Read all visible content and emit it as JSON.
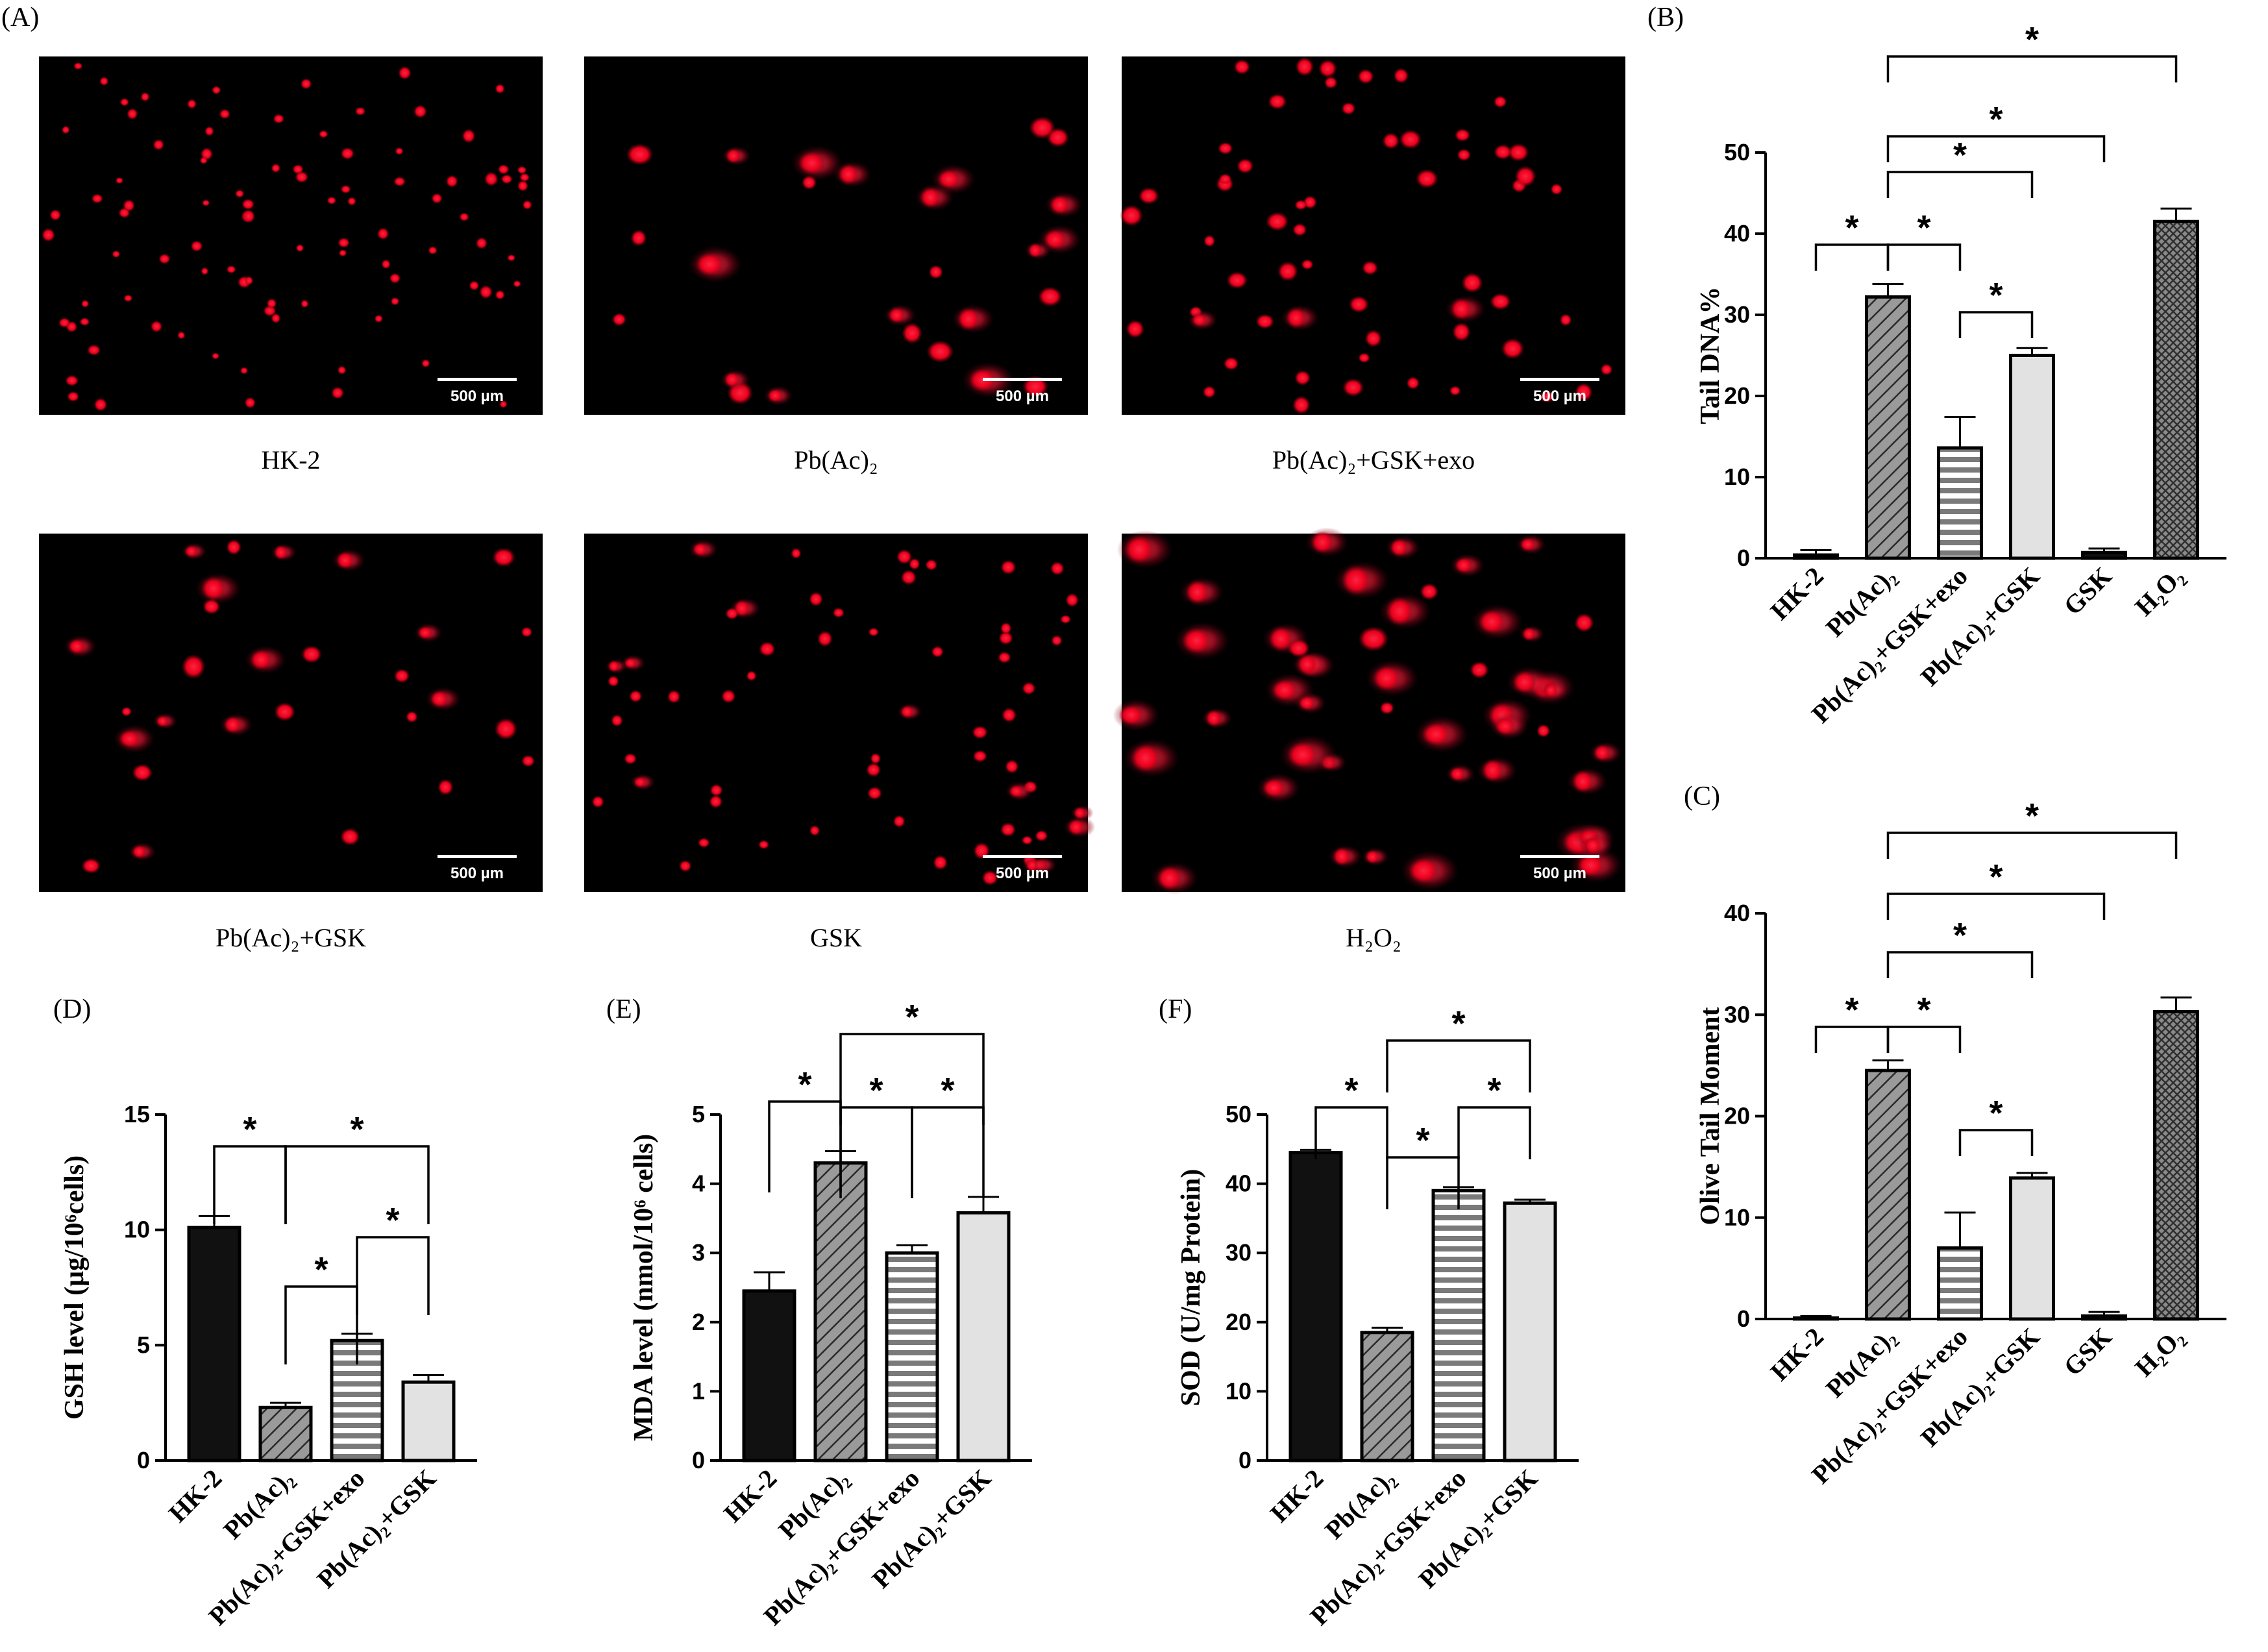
{
  "panel_labels": {
    "A": "(A)",
    "B": "(B)",
    "C": "(C)",
    "D": "(D)",
    "E": "(E)",
    "F": "(F)"
  },
  "colors": {
    "cell_stain": "#e8001c",
    "background": "#000000",
    "black_bar": "#111111",
    "light_bar": "#e2e2e2",
    "gray_bar": "#8f8f8f"
  },
  "micrographs": [
    {
      "caption": "HK-2",
      "scale_bar": "500 µm"
    },
    {
      "caption": "Pb(Ac)₂",
      "scale_bar": "500 µm"
    },
    {
      "caption": "Pb(Ac)₂+GSK+exo",
      "scale_bar": "500 µm"
    },
    {
      "caption": "Pb(Ac)₂+GSK",
      "scale_bar": "500 µm"
    },
    {
      "caption": "GSK",
      "scale_bar": "500 µm"
    },
    {
      "caption": "H₂O₂",
      "scale_bar": "500 µm"
    }
  ],
  "chart_data": [
    {
      "panel": "B",
      "type": "bar",
      "ylabel": "Tail DNA%",
      "ylim": [
        0,
        50
      ],
      "yticks": [
        0,
        10,
        20,
        30,
        40,
        50
      ],
      "categories": [
        "HK-2",
        "Pb(Ac)₂",
        "Pb(Ac)₂+GSK+exo",
        "Pb(Ac)₂+GSK",
        "GSK",
        "H₂O₂"
      ],
      "values": [
        0.4,
        32.2,
        13.6,
        25.0,
        0.7,
        41.5
      ],
      "errors": [
        0.6,
        1.6,
        3.8,
        0.9,
        0.5,
        1.6
      ],
      "patterns": [
        "black",
        "diagonal",
        "horizontal",
        "light",
        "black",
        "crosshatch"
      ],
      "significance": [
        {
          "from": 0,
          "to": 1,
          "label": "*"
        },
        {
          "from": 1,
          "to": 2,
          "label": "*"
        },
        {
          "from": 2,
          "to": 3,
          "label": "*"
        },
        {
          "from": 1,
          "to": 3,
          "label": "*"
        },
        {
          "from": 1,
          "to": 4,
          "label": "*"
        },
        {
          "from": 1,
          "to": 5,
          "label": "*"
        }
      ]
    },
    {
      "panel": "C",
      "type": "bar",
      "ylabel": "Olive Tail Moment",
      "ylim": [
        0,
        40
      ],
      "yticks": [
        0,
        10,
        20,
        30,
        40
      ],
      "categories": [
        "HK-2",
        "Pb(Ac)₂",
        "Pb(Ac)₂+GSK+exo",
        "Pb(Ac)₂+GSK",
        "GSK",
        "H₂O₂"
      ],
      "values": [
        0.1,
        24.5,
        7.0,
        13.9,
        0.3,
        30.3
      ],
      "errors": [
        0.2,
        1.0,
        3.5,
        0.5,
        0.4,
        1.4
      ],
      "patterns": [
        "black",
        "diagonal",
        "horizontal",
        "light",
        "black",
        "crosshatch"
      ],
      "significance": [
        {
          "from": 0,
          "to": 1,
          "label": "*"
        },
        {
          "from": 1,
          "to": 2,
          "label": "*"
        },
        {
          "from": 2,
          "to": 3,
          "label": "*"
        },
        {
          "from": 1,
          "to": 3,
          "label": "*"
        },
        {
          "from": 1,
          "to": 4,
          "label": "*"
        },
        {
          "from": 1,
          "to": 5,
          "label": "*"
        }
      ]
    },
    {
      "panel": "D",
      "type": "bar",
      "ylabel": "GSH level (μg/10⁶cells)",
      "ylim": [
        0,
        15
      ],
      "yticks": [
        0,
        5,
        10,
        15
      ],
      "categories": [
        "HK-2",
        "Pb(Ac)₂",
        "Pb(Ac)₂+GSK+exo",
        "Pb(Ac)₂+GSK"
      ],
      "values": [
        10.1,
        2.3,
        5.2,
        3.4
      ],
      "errors": [
        0.5,
        0.2,
        0.3,
        0.3
      ],
      "patterns": [
        "black",
        "diagonal",
        "horizontal",
        "light"
      ],
      "significance": [
        {
          "from": 0,
          "to": 1,
          "label": "*"
        },
        {
          "from": 1,
          "to": 2,
          "label": "*"
        },
        {
          "from": 2,
          "to": 3,
          "label": "*"
        },
        {
          "from": 1,
          "to": 3,
          "label": "*"
        }
      ]
    },
    {
      "panel": "E",
      "type": "bar",
      "ylabel": "MDA level (nmol/10⁶ cells)",
      "ylim": [
        0,
        5
      ],
      "yticks": [
        0,
        1,
        2,
        3,
        4,
        5
      ],
      "categories": [
        "HK-2",
        "Pb(Ac)₂",
        "Pb(Ac)₂+GSK+exo",
        "Pb(Ac)₂+GSK"
      ],
      "values": [
        2.45,
        4.3,
        3.0,
        3.58
      ],
      "errors": [
        0.27,
        0.17,
        0.11,
        0.23
      ],
      "patterns": [
        "black",
        "diagonal",
        "horizontal",
        "light"
      ],
      "significance": [
        {
          "from": 0,
          "to": 1,
          "label": "*"
        },
        {
          "from": 1,
          "to": 2,
          "label": "*"
        },
        {
          "from": 2,
          "to": 3,
          "label": "*"
        },
        {
          "from": 1,
          "to": 3,
          "label": "*"
        }
      ]
    },
    {
      "panel": "F",
      "type": "bar",
      "ylabel": "SOD (U/mg Protein)",
      "ylim": [
        0,
        50
      ],
      "yticks": [
        0,
        10,
        20,
        30,
        40,
        50
      ],
      "categories": [
        "HK-2",
        "Pb(Ac)₂",
        "Pb(Ac)₂+GSK+exo",
        "Pb(Ac)₂+GSK"
      ],
      "values": [
        44.5,
        18.5,
        39.0,
        37.2
      ],
      "errors": [
        0.4,
        0.7,
        0.5,
        0.5
      ],
      "patterns": [
        "black",
        "diagonal",
        "horizontal",
        "light"
      ],
      "significance": [
        {
          "from": 0,
          "to": 1,
          "label": "*"
        },
        {
          "from": 1,
          "to": 2,
          "label": "*"
        },
        {
          "from": 2,
          "to": 3,
          "label": "*"
        },
        {
          "from": 1,
          "to": 3,
          "label": "*"
        }
      ]
    }
  ]
}
